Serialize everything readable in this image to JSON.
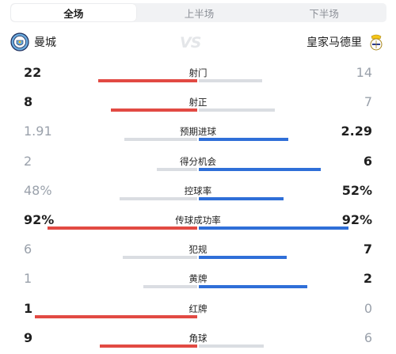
{
  "tabs": [
    {
      "label": "全场",
      "active": true
    },
    {
      "label": "上半场",
      "active": false
    },
    {
      "label": "下半场",
      "active": false
    }
  ],
  "home_team": {
    "name": "曼城",
    "icon": "man-city-crest-icon"
  },
  "away_team": {
    "name": "皇家马德里",
    "icon": "real-madrid-crest-icon"
  },
  "vs_text": "VS",
  "colors": {
    "home_accent": "#e24a43",
    "away_accent": "#2f6fd8",
    "neutral": "#dadde2"
  },
  "stats": [
    {
      "label": "射门",
      "home": "22",
      "away": "14",
      "home_bar": 0.61,
      "away_bar": 0.39,
      "leader": "home"
    },
    {
      "label": "射正",
      "home": "8",
      "away": "7",
      "home_bar": 0.53,
      "away_bar": 0.47,
      "leader": "home"
    },
    {
      "label": "预期进球",
      "home": "1.91",
      "away": "2.29",
      "home_bar": 0.45,
      "away_bar": 0.55,
      "leader": "away"
    },
    {
      "label": "得分机会",
      "home": "2",
      "away": "6",
      "home_bar": 0.25,
      "away_bar": 0.75,
      "leader": "away"
    },
    {
      "label": "控球率",
      "home": "48%",
      "away": "52%",
      "home_bar": 0.48,
      "away_bar": 0.52,
      "leader": "away"
    },
    {
      "label": "传球成功率",
      "home": "92%",
      "away": "92%",
      "home_bar": 0.92,
      "away_bar": 0.92,
      "leader": "both"
    },
    {
      "label": "犯规",
      "home": "6",
      "away": "7",
      "home_bar": 0.46,
      "away_bar": 0.54,
      "leader": "away"
    },
    {
      "label": "黄牌",
      "home": "1",
      "away": "2",
      "home_bar": 0.33,
      "away_bar": 0.67,
      "leader": "away"
    },
    {
      "label": "红牌",
      "home": "1",
      "away": "0",
      "home_bar": 1.0,
      "away_bar": 0.0,
      "leader": "home"
    },
    {
      "label": "角球",
      "home": "9",
      "away": "6",
      "home_bar": 0.6,
      "away_bar": 0.4,
      "leader": "home"
    }
  ]
}
